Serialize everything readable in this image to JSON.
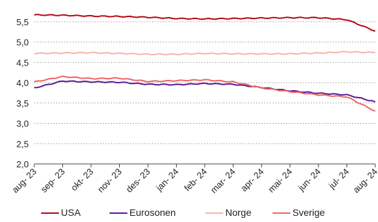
{
  "chart_data": {
    "type": "line",
    "x": [
      "aug- 23",
      "sep- 23",
      "okt- 23",
      "nov- 23",
      "des- 23",
      "jan- 24",
      "feb- 24",
      "mar- 24",
      "apr- 24",
      "mai- 24",
      "jun- 24",
      "jul- 24",
      "aug- 24"
    ],
    "ylim": [
      2.0,
      5.8
    ],
    "yticks": [
      "2,0",
      "2,5",
      "3,0",
      "3,5",
      "4,0",
      "4,5",
      "5,0",
      "5,5"
    ],
    "ytick_values": [
      2.0,
      2.5,
      3.0,
      3.5,
      4.0,
      4.5,
      5.0,
      5.5
    ],
    "grid": "horizontal dotted",
    "legend_position": "bottom",
    "series": [
      {
        "name": "USA",
        "color": "#b40a14",
        "values": [
          5.67,
          5.66,
          5.64,
          5.63,
          5.61,
          5.58,
          5.57,
          5.58,
          5.59,
          5.6,
          5.6,
          5.55,
          5.27
        ]
      },
      {
        "name": "Eurosonen",
        "color": "#5a1a96",
        "values": [
          3.87,
          4.04,
          4.02,
          4.01,
          3.96,
          3.95,
          3.98,
          3.96,
          3.88,
          3.8,
          3.74,
          3.7,
          3.53
        ]
      },
      {
        "name": "Norge",
        "color": "#f5b4aa",
        "values": [
          4.72,
          4.73,
          4.74,
          4.72,
          4.7,
          4.7,
          4.72,
          4.71,
          4.71,
          4.71,
          4.73,
          4.76,
          4.74
        ]
      },
      {
        "name": "Sverige",
        "color": "#f06464",
        "values": [
          4.02,
          4.15,
          4.1,
          4.11,
          4.03,
          4.05,
          4.07,
          4.02,
          3.87,
          3.78,
          3.7,
          3.65,
          3.3
        ]
      }
    ]
  }
}
